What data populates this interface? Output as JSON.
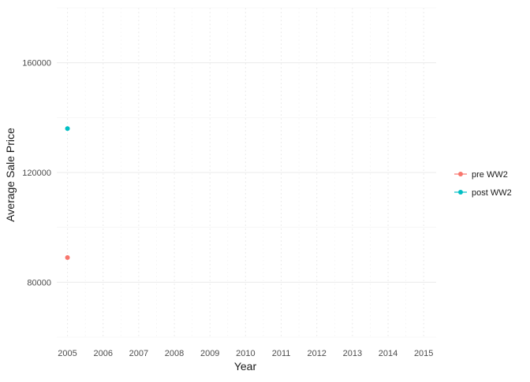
{
  "chart_data": {
    "type": "line",
    "title": "",
    "xlabel": "Year",
    "ylabel": "Average Sale Price",
    "x_ticks": [
      2005,
      2006,
      2007,
      2008,
      2009,
      2010,
      2011,
      2012,
      2013,
      2014,
      2015
    ],
    "y_ticks": [
      80000,
      120000,
      160000
    ],
    "y_tick_labels": [
      "80000",
      "120000",
      "160000"
    ],
    "xlim": [
      2004.7,
      2015.35
    ],
    "ylim": [
      60000,
      180000
    ],
    "grid": true,
    "legend_position": "right",
    "series": [
      {
        "name": "pre WW2",
        "color": "#F8766D",
        "points": [
          {
            "x": 2005,
            "y": 89000
          }
        ]
      },
      {
        "name": "post WW2",
        "color": "#00BFC4",
        "points": [
          {
            "x": 2005,
            "y": 136000
          }
        ]
      }
    ]
  }
}
